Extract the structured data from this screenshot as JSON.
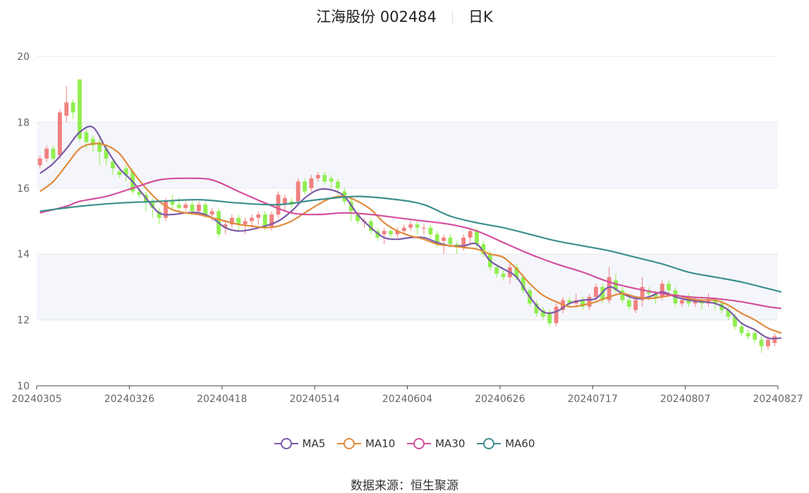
{
  "header": {
    "stock": "江海股份 002484",
    "period": "日K"
  },
  "source_label": "数据来源：恒生聚源",
  "colors": {
    "up": "#f08080",
    "down": "#90ee50",
    "ma5": "#7b5aa6",
    "ma10": "#e08a3c",
    "ma30": "#d44f9e",
    "ma60": "#3e8f8f"
  },
  "chart_data": {
    "type": "candlestick",
    "ylim": [
      10,
      20
    ],
    "yticks": [
      10,
      12,
      14,
      16,
      18,
      20
    ],
    "xticks": [
      "20240305",
      "20240326",
      "20240418",
      "20240514",
      "20240604",
      "20240626",
      "20240717",
      "20240807",
      "20240827"
    ],
    "legend": [
      "MA5",
      "MA10",
      "MA30",
      "MA60"
    ],
    "legend_position": "bottom",
    "candles": [
      [
        16.7,
        16.9,
        16.6,
        17.0
      ],
      [
        16.9,
        17.2,
        16.8,
        17.3
      ],
      [
        17.2,
        16.9,
        16.8,
        17.3
      ],
      [
        17.0,
        18.3,
        16.9,
        18.4
      ],
      [
        18.2,
        18.6,
        18.0,
        19.1
      ],
      [
        18.6,
        18.3,
        18.1,
        18.7
      ],
      [
        19.3,
        17.5,
        17.4,
        19.3
      ],
      [
        17.7,
        17.4,
        17.2,
        17.8
      ],
      [
        17.5,
        17.3,
        17.1,
        17.6
      ],
      [
        17.4,
        17.1,
        16.7,
        17.6
      ],
      [
        17.2,
        16.9,
        16.7,
        17.3
      ],
      [
        16.8,
        16.6,
        16.4,
        16.9
      ],
      [
        16.5,
        16.4,
        16.3,
        16.6
      ],
      [
        16.6,
        16.4,
        16.2,
        16.7
      ],
      [
        16.5,
        15.9,
        15.8,
        16.6
      ],
      [
        15.9,
        15.8,
        15.7,
        16.0
      ],
      [
        15.8,
        15.6,
        15.3,
        15.9
      ],
      [
        15.6,
        15.4,
        15.1,
        15.7
      ],
      [
        15.3,
        15.1,
        14.9,
        15.4
      ],
      [
        15.1,
        15.6,
        15.0,
        15.7
      ],
      [
        15.6,
        15.5,
        15.3,
        15.8
      ],
      [
        15.5,
        15.4,
        15.3,
        15.7
      ],
      [
        15.4,
        15.5,
        15.3,
        15.6
      ],
      [
        15.5,
        15.3,
        15.2,
        15.6
      ],
      [
        15.3,
        15.5,
        15.2,
        15.6
      ],
      [
        15.5,
        15.2,
        15.1,
        15.6
      ],
      [
        15.2,
        15.3,
        15.0,
        15.4
      ],
      [
        15.3,
        14.6,
        14.5,
        15.4
      ],
      [
        14.8,
        14.9,
        14.6,
        15.0
      ],
      [
        14.9,
        15.1,
        14.8,
        15.2
      ],
      [
        15.1,
        14.9,
        14.7,
        15.2
      ],
      [
        14.9,
        15.0,
        14.6,
        15.1
      ],
      [
        15.0,
        15.1,
        14.8,
        15.2
      ],
      [
        15.1,
        15.2,
        14.9,
        15.3
      ],
      [
        15.2,
        14.8,
        14.7,
        15.3
      ],
      [
        14.8,
        15.2,
        14.7,
        15.3
      ],
      [
        15.2,
        15.8,
        15.1,
        15.9
      ],
      [
        15.5,
        15.7,
        15.3,
        15.8
      ],
      [
        15.6,
        15.5,
        15.4,
        15.7
      ],
      [
        15.6,
        16.2,
        15.5,
        16.3
      ],
      [
        16.2,
        15.9,
        15.8,
        16.3
      ],
      [
        16.0,
        16.3,
        15.9,
        16.4
      ],
      [
        16.3,
        16.4,
        16.2,
        16.5
      ],
      [
        16.4,
        16.2,
        16.1,
        16.5
      ],
      [
        16.3,
        16.2,
        16.0,
        16.4
      ],
      [
        16.2,
        16.0,
        15.8,
        16.3
      ],
      [
        15.9,
        15.6,
        15.5,
        16.0
      ],
      [
        15.6,
        15.3,
        15.0,
        15.7
      ],
      [
        15.2,
        15.0,
        14.9,
        15.3
      ],
      [
        15.0,
        15.0,
        14.8,
        15.1
      ],
      [
        15.0,
        14.7,
        14.6,
        15.1
      ],
      [
        14.7,
        14.5,
        14.4,
        14.8
      ],
      [
        14.6,
        14.7,
        14.3,
        14.8
      ],
      [
        14.7,
        14.6,
        14.5,
        14.8
      ],
      [
        14.6,
        14.7,
        14.5,
        14.8
      ],
      [
        14.7,
        14.8,
        14.6,
        14.9
      ],
      [
        14.8,
        14.9,
        14.7,
        15.0
      ],
      [
        14.9,
        14.8,
        14.6,
        15.0
      ],
      [
        14.8,
        14.8,
        14.6,
        14.9
      ],
      [
        14.8,
        14.6,
        14.5,
        14.9
      ],
      [
        14.6,
        14.3,
        14.2,
        14.7
      ],
      [
        14.4,
        14.5,
        14.0,
        14.6
      ],
      [
        14.5,
        14.3,
        14.2,
        14.6
      ],
      [
        14.3,
        14.2,
        14.0,
        14.4
      ],
      [
        14.2,
        14.5,
        14.1,
        14.6
      ],
      [
        14.5,
        14.7,
        14.3,
        14.8
      ],
      [
        14.7,
        14.3,
        14.2,
        14.8
      ],
      [
        14.3,
        14.0,
        13.9,
        14.4
      ],
      [
        14.0,
        13.6,
        13.5,
        14.1
      ],
      [
        13.6,
        13.4,
        13.3,
        13.7
      ],
      [
        13.4,
        13.3,
        13.2,
        13.5
      ],
      [
        13.3,
        13.6,
        13.1,
        13.7
      ],
      [
        13.6,
        13.3,
        13.2,
        13.7
      ],
      [
        13.3,
        12.9,
        12.8,
        13.4
      ],
      [
        12.9,
        12.5,
        12.4,
        13.0
      ],
      [
        12.5,
        12.2,
        12.1,
        12.6
      ],
      [
        12.3,
        12.1,
        12.0,
        12.4
      ],
      [
        12.2,
        11.9,
        11.8,
        12.3
      ],
      [
        11.9,
        12.4,
        11.8,
        12.5
      ],
      [
        12.3,
        12.6,
        12.2,
        12.7
      ],
      [
        12.6,
        12.5,
        12.4,
        12.7
      ],
      [
        12.5,
        12.6,
        12.4,
        12.8
      ],
      [
        12.6,
        12.4,
        12.3,
        12.7
      ],
      [
        12.4,
        12.7,
        12.3,
        12.8
      ],
      [
        12.7,
        13.0,
        12.6,
        13.1
      ],
      [
        13.0,
        12.6,
        12.5,
        13.1
      ],
      [
        12.6,
        13.3,
        12.5,
        13.6
      ],
      [
        13.2,
        12.9,
        12.8,
        13.4
      ],
      [
        12.9,
        12.6,
        12.5,
        13.0
      ],
      [
        12.6,
        12.4,
        12.3,
        12.7
      ],
      [
        12.3,
        12.6,
        12.2,
        12.7
      ],
      [
        12.6,
        13.0,
        12.4,
        13.3
      ],
      [
        12.9,
        12.8,
        12.6,
        13.0
      ],
      [
        12.8,
        12.7,
        12.5,
        12.9
      ],
      [
        12.7,
        13.1,
        12.6,
        13.2
      ],
      [
        13.1,
        12.9,
        12.8,
        13.2
      ],
      [
        12.9,
        12.5,
        12.4,
        13.0
      ],
      [
        12.5,
        12.6,
        12.4,
        12.7
      ],
      [
        12.7,
        12.5,
        12.4,
        12.8
      ],
      [
        12.5,
        12.6,
        12.4,
        12.7
      ],
      [
        12.6,
        12.5,
        12.3,
        12.7
      ],
      [
        12.5,
        12.6,
        12.4,
        12.8
      ],
      [
        12.6,
        12.5,
        12.3,
        12.7
      ],
      [
        12.5,
        12.3,
        12.2,
        12.6
      ],
      [
        12.3,
        12.1,
        12.0,
        12.4
      ],
      [
        12.1,
        11.8,
        11.7,
        12.2
      ],
      [
        11.8,
        11.6,
        11.5,
        11.9
      ],
      [
        11.6,
        11.5,
        11.4,
        11.7
      ],
      [
        11.6,
        11.4,
        11.3,
        11.7
      ],
      [
        11.4,
        11.2,
        11.0,
        11.5
      ],
      [
        11.2,
        11.4,
        11.1,
        11.5
      ],
      [
        11.3,
        11.5,
        11.2,
        11.6
      ]
    ],
    "series": [
      {
        "name": "MA5",
        "points": [
          [
            0,
            16.45
          ],
          [
            2,
            16.75
          ],
          [
            4,
            17.2
          ],
          [
            6,
            17.7
          ],
          [
            8,
            17.85
          ],
          [
            10,
            17.2
          ],
          [
            12,
            16.6
          ],
          [
            14,
            16.2
          ],
          [
            16,
            15.7
          ],
          [
            18,
            15.25
          ],
          [
            20,
            15.2
          ],
          [
            22,
            15.25
          ],
          [
            24,
            15.25
          ],
          [
            26,
            15.1
          ],
          [
            28,
            14.8
          ],
          [
            30,
            14.7
          ],
          [
            32,
            14.75
          ],
          [
            34,
            14.85
          ],
          [
            36,
            15.0
          ],
          [
            38,
            15.3
          ],
          [
            40,
            15.7
          ],
          [
            42,
            15.95
          ],
          [
            44,
            15.95
          ],
          [
            46,
            15.75
          ],
          [
            48,
            15.2
          ],
          [
            50,
            14.8
          ],
          [
            52,
            14.5
          ],
          [
            54,
            14.45
          ],
          [
            56,
            14.5
          ],
          [
            58,
            14.5
          ],
          [
            60,
            14.35
          ],
          [
            62,
            14.25
          ],
          [
            64,
            14.25
          ],
          [
            66,
            14.3
          ],
          [
            68,
            13.8
          ],
          [
            70,
            13.55
          ],
          [
            72,
            13.3
          ],
          [
            74,
            12.7
          ],
          [
            76,
            12.25
          ],
          [
            78,
            12.25
          ],
          [
            80,
            12.5
          ],
          [
            82,
            12.6
          ],
          [
            84,
            12.65
          ],
          [
            86,
            13.0
          ],
          [
            88,
            12.8
          ],
          [
            90,
            12.65
          ],
          [
            92,
            12.7
          ],
          [
            94,
            12.85
          ],
          [
            96,
            12.7
          ],
          [
            98,
            12.6
          ],
          [
            100,
            12.55
          ],
          [
            102,
            12.5
          ],
          [
            104,
            12.3
          ],
          [
            106,
            11.9
          ],
          [
            108,
            11.7
          ],
          [
            110,
            11.45
          ],
          [
            112,
            11.45
          ]
        ]
      },
      {
        "name": "MA10",
        "points": [
          [
            0,
            15.9
          ],
          [
            2,
            16.2
          ],
          [
            4,
            16.7
          ],
          [
            6,
            17.2
          ],
          [
            8,
            17.35
          ],
          [
            10,
            17.3
          ],
          [
            12,
            17.05
          ],
          [
            14,
            16.5
          ],
          [
            16,
            16.0
          ],
          [
            18,
            15.6
          ],
          [
            20,
            15.35
          ],
          [
            22,
            15.25
          ],
          [
            24,
            15.2
          ],
          [
            26,
            15.1
          ],
          [
            28,
            15.0
          ],
          [
            30,
            14.9
          ],
          [
            32,
            14.85
          ],
          [
            34,
            14.8
          ],
          [
            36,
            14.85
          ],
          [
            38,
            15.0
          ],
          [
            40,
            15.25
          ],
          [
            42,
            15.5
          ],
          [
            44,
            15.7
          ],
          [
            46,
            15.75
          ],
          [
            48,
            15.6
          ],
          [
            50,
            15.35
          ],
          [
            52,
            14.95
          ],
          [
            54,
            14.7
          ],
          [
            56,
            14.55
          ],
          [
            58,
            14.45
          ],
          [
            60,
            14.3
          ],
          [
            62,
            14.25
          ],
          [
            64,
            14.2
          ],
          [
            66,
            14.15
          ],
          [
            68,
            14.0
          ],
          [
            70,
            13.9
          ],
          [
            72,
            13.55
          ],
          [
            74,
            13.1
          ],
          [
            76,
            12.75
          ],
          [
            78,
            12.55
          ],
          [
            80,
            12.4
          ],
          [
            82,
            12.45
          ],
          [
            84,
            12.55
          ],
          [
            86,
            12.7
          ],
          [
            88,
            12.8
          ],
          [
            90,
            12.7
          ],
          [
            92,
            12.65
          ],
          [
            94,
            12.7
          ],
          [
            96,
            12.75
          ],
          [
            98,
            12.65
          ],
          [
            100,
            12.6
          ],
          [
            102,
            12.6
          ],
          [
            104,
            12.45
          ],
          [
            106,
            12.2
          ],
          [
            108,
            12.0
          ],
          [
            110,
            11.75
          ],
          [
            112,
            11.6
          ]
        ]
      },
      {
        "name": "MA30",
        "points": [
          [
            0,
            15.25
          ],
          [
            4,
            15.45
          ],
          [
            6,
            15.6
          ],
          [
            10,
            15.75
          ],
          [
            14,
            16.0
          ],
          [
            18,
            16.25
          ],
          [
            22,
            16.3
          ],
          [
            26,
            16.25
          ],
          [
            30,
            15.9
          ],
          [
            34,
            15.55
          ],
          [
            38,
            15.25
          ],
          [
            42,
            15.2
          ],
          [
            46,
            15.25
          ],
          [
            50,
            15.2
          ],
          [
            56,
            15.05
          ],
          [
            62,
            14.9
          ],
          [
            66,
            14.7
          ],
          [
            70,
            14.35
          ],
          [
            74,
            14.0
          ],
          [
            78,
            13.7
          ],
          [
            82,
            13.45
          ],
          [
            86,
            13.15
          ],
          [
            90,
            12.95
          ],
          [
            94,
            12.8
          ],
          [
            98,
            12.7
          ],
          [
            102,
            12.65
          ],
          [
            106,
            12.55
          ],
          [
            110,
            12.4
          ],
          [
            112,
            12.35
          ]
        ]
      },
      {
        "name": "MA60",
        "points": [
          [
            0,
            15.3
          ],
          [
            6,
            15.45
          ],
          [
            12,
            15.55
          ],
          [
            18,
            15.6
          ],
          [
            24,
            15.65
          ],
          [
            30,
            15.55
          ],
          [
            36,
            15.5
          ],
          [
            42,
            15.65
          ],
          [
            48,
            15.75
          ],
          [
            54,
            15.65
          ],
          [
            58,
            15.5
          ],
          [
            62,
            15.15
          ],
          [
            66,
            14.95
          ],
          [
            70,
            14.8
          ],
          [
            74,
            14.6
          ],
          [
            78,
            14.4
          ],
          [
            82,
            14.25
          ],
          [
            86,
            14.1
          ],
          [
            90,
            13.9
          ],
          [
            94,
            13.7
          ],
          [
            98,
            13.45
          ],
          [
            102,
            13.3
          ],
          [
            106,
            13.15
          ],
          [
            110,
            12.95
          ],
          [
            112,
            12.85
          ]
        ]
      }
    ]
  }
}
